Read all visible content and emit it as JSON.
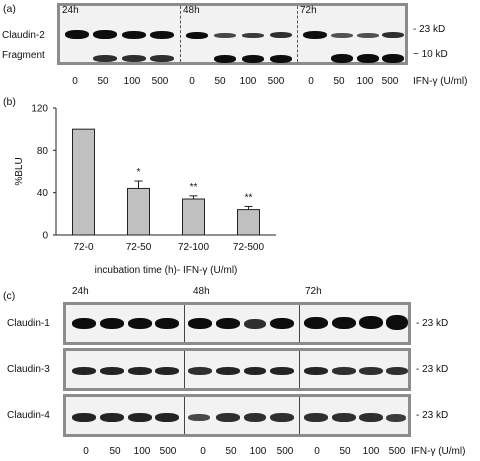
{
  "panel_a": {
    "letter": "(a)",
    "timepoints": [
      "24h",
      "48h",
      "72h"
    ],
    "rows": [
      "Claudin-2",
      "Fragment"
    ],
    "sizes": [
      "- 23 kD",
      "~ 10 kD"
    ],
    "doses": [
      "0",
      "50",
      "100",
      "500",
      "0",
      "50",
      "100",
      "500",
      "0",
      "50",
      "100",
      "500"
    ],
    "axis_label": "IFN-γ (U/ml)"
  },
  "panel_b": {
    "letter": "(b)"
  },
  "chart_data": {
    "type": "bar",
    "categories": [
      "72-0",
      "72-50",
      "72-100",
      "72-500"
    ],
    "values": [
      100,
      44,
      34,
      24
    ],
    "errors": [
      0,
      7,
      3,
      3
    ],
    "significance": [
      "",
      "*",
      "**",
      "**"
    ],
    "xlabel": "incubation time (h)- IFN-γ (U/ml)",
    "ylabel": "%BLU",
    "ylim": [
      0,
      120
    ],
    "yticks": [
      "0",
      "40",
      "80",
      "120"
    ],
    "bar_color": "#c0c0c0"
  },
  "panel_c": {
    "letter": "(c)",
    "timepoints": [
      "24h",
      "48h",
      "72h"
    ],
    "rows": [
      "Claudin-1",
      "Claudin-3",
      "Claudin-4"
    ],
    "size": "- 23 kD",
    "doses": [
      "0",
      "50",
      "100",
      "500",
      "0",
      "50",
      "100",
      "500",
      "0",
      "50",
      "100",
      "500"
    ],
    "axis_label": "IFN-γ (U/ml)"
  }
}
